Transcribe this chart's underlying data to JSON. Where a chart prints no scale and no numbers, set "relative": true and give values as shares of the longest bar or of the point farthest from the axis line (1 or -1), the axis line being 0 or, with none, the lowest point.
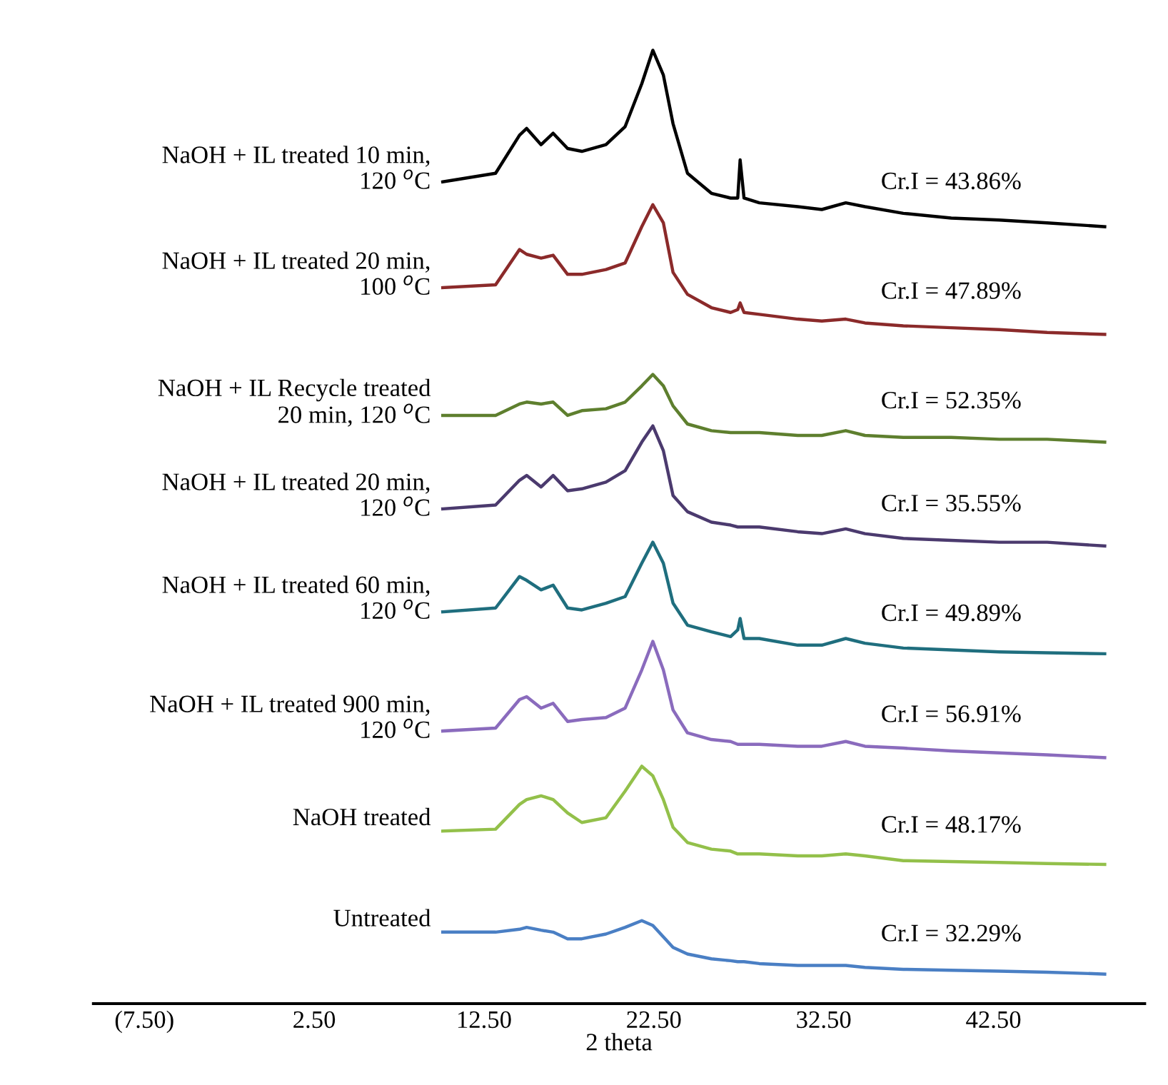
{
  "chart_data": {
    "type": "line",
    "relative": true,
    "xlabel": "2 theta",
    "xlim": [
      -10.5,
      51.4
    ],
    "xticks": [
      {
        "value": -7.5,
        "label": "(7.50)"
      },
      {
        "value": 2.5,
        "label": "2.50"
      },
      {
        "value": 12.5,
        "label": "12.50"
      },
      {
        "value": 22.5,
        "label": "22.50"
      },
      {
        "value": 32.5,
        "label": "32.50"
      },
      {
        "value": 42.5,
        "label": "42.50"
      }
    ],
    "tick_labels": "x",
    "grid": false,
    "legend": false,
    "marker": "none",
    "line_style": "solid",
    "x": [
      10.07,
      13.18,
      14.59,
      15.01,
      15.86,
      16.57,
      17.42,
      18.26,
      19.68,
      20.81,
      21.79,
      22.44,
      23.06,
      23.63,
      24.48,
      25.89,
      27.02,
      27.44,
      27.58,
      27.81,
      28.71,
      30.97,
      32.39,
      33.8,
      34.93,
      37.19,
      40.01,
      42.84,
      45.66,
      49.05
    ],
    "series": [
      {
        "name": "NaOH + IL treated 10 min,\n120 $^{o}$C",
        "color": "#000000",
        "values": [
          0.862,
          0.871,
          0.911,
          0.918,
          0.901,
          0.913,
          0.897,
          0.894,
          0.901,
          0.92,
          0.965,
          1.0,
          0.974,
          0.923,
          0.871,
          0.85,
          0.845,
          0.845,
          0.885,
          0.845,
          0.84,
          0.836,
          0.833,
          0.84,
          0.836,
          0.829,
          0.824,
          0.822,
          0.819,
          0.815
        ]
      },
      {
        "name": "NaOH + IL treated 20 min,\n100 $^{o}$C",
        "color": "#8b2a2a",
        "values": [
          0.751,
          0.754,
          0.791,
          0.786,
          0.782,
          0.785,
          0.765,
          0.765,
          0.77,
          0.777,
          0.815,
          0.838,
          0.819,
          0.767,
          0.744,
          0.73,
          0.725,
          0.728,
          0.735,
          0.725,
          0.723,
          0.718,
          0.716,
          0.718,
          0.714,
          0.711,
          0.709,
          0.707,
          0.704,
          0.702
        ]
      },
      {
        "name": "NaOH + IL Recycle treated\n20 min, 120 $^{o}$C",
        "color": "#5e7f2e",
        "values": [
          0.617,
          0.617,
          0.629,
          0.631,
          0.629,
          0.631,
          0.617,
          0.622,
          0.624,
          0.631,
          0.648,
          0.66,
          0.648,
          0.627,
          0.608,
          0.601,
          0.599,
          0.599,
          0.599,
          0.599,
          0.599,
          0.596,
          0.596,
          0.601,
          0.596,
          0.594,
          0.594,
          0.592,
          0.592,
          0.589
        ]
      },
      {
        "name": "NaOH + IL treated 20 min,\n120 $^{o}$C",
        "color": "#4b3a6e",
        "values": [
          0.519,
          0.523,
          0.549,
          0.554,
          0.542,
          0.554,
          0.538,
          0.54,
          0.547,
          0.559,
          0.589,
          0.606,
          0.58,
          0.533,
          0.516,
          0.505,
          0.502,
          0.5,
          0.5,
          0.5,
          0.5,
          0.495,
          0.493,
          0.498,
          0.493,
          0.488,
          0.486,
          0.484,
          0.484,
          0.48
        ]
      },
      {
        "name": "NaOH + IL treated 60 min,\n120 $^{o}$C",
        "color": "#1f6e7e",
        "values": [
          0.411,
          0.415,
          0.448,
          0.444,
          0.434,
          0.439,
          0.415,
          0.413,
          0.42,
          0.427,
          0.462,
          0.484,
          0.462,
          0.42,
          0.397,
          0.39,
          0.385,
          0.392,
          0.404,
          0.383,
          0.383,
          0.376,
          0.376,
          0.383,
          0.378,
          0.373,
          0.371,
          0.369,
          0.368,
          0.367
        ]
      },
      {
        "name": "NaOH + IL treated 900 min,\n120 $^{o}$C",
        "color": "#8a6bbd",
        "values": [
          0.286,
          0.289,
          0.319,
          0.322,
          0.31,
          0.315,
          0.296,
          0.298,
          0.3,
          0.31,
          0.35,
          0.38,
          0.35,
          0.308,
          0.284,
          0.277,
          0.275,
          0.272,
          0.272,
          0.272,
          0.272,
          0.27,
          0.27,
          0.275,
          0.27,
          0.268,
          0.265,
          0.263,
          0.261,
          0.258
        ]
      },
      {
        "name": "NaOH treated",
        "color": "#93c04a",
        "values": [
          0.181,
          0.183,
          0.209,
          0.214,
          0.218,
          0.214,
          0.2,
          0.19,
          0.195,
          0.223,
          0.249,
          0.239,
          0.214,
          0.185,
          0.169,
          0.162,
          0.16,
          0.157,
          0.157,
          0.157,
          0.157,
          0.155,
          0.155,
          0.157,
          0.155,
          0.15,
          0.149,
          0.148,
          0.147,
          0.146
        ]
      },
      {
        "name": "Untreated",
        "color": "#4a7fc4",
        "values": [
          0.075,
          0.075,
          0.078,
          0.08,
          0.077,
          0.075,
          0.068,
          0.068,
          0.073,
          0.08,
          0.087,
          0.082,
          0.07,
          0.059,
          0.052,
          0.047,
          0.045,
          0.044,
          0.044,
          0.044,
          0.042,
          0.04,
          0.04,
          0.04,
          0.038,
          0.036,
          0.035,
          0.034,
          0.033,
          0.031
        ]
      }
    ],
    "annotations": [
      "Cr.I = 43.86%",
      "Cr.I = 47.89%",
      "Cr.I = 52.35%",
      "Cr.I = 35.55%",
      "Cr.I = 49.89%",
      "Cr.I = 56.91%",
      "Cr.I = 48.17%",
      "Cr.I = 32.29%"
    ]
  }
}
